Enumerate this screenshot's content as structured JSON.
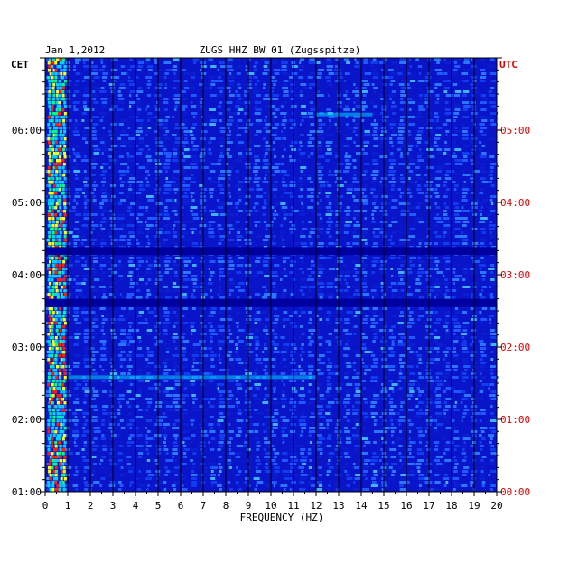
{
  "chart_data": {
    "type": "heatmap",
    "date": "Jan 1,2012",
    "title": "ZUGS HHZ BW 01 (Zugsspitze)",
    "left_timezone": "CET",
    "right_timezone": "UTC",
    "xlabel": "FREQUENCY (HZ)",
    "x_range": [
      0,
      20
    ],
    "x_ticks": [
      "0",
      "1",
      "2",
      "3",
      "4",
      "5",
      "6",
      "7",
      "8",
      "9",
      "10",
      "11",
      "12",
      "13",
      "14",
      "15",
      "16",
      "17",
      "18",
      "19",
      "20"
    ],
    "y_ticks_left": [
      "06:00",
      "05:00",
      "04:00",
      "03:00",
      "02:00",
      "01:00"
    ],
    "y_ticks_right": [
      "05:00",
      "04:00",
      "03:00",
      "02:00",
      "01:00",
      "00:00"
    ],
    "grid": true,
    "colors": {
      "background": "#0a14c8",
      "low": "#0000a0",
      "mid": "#1e5aff",
      "high": "#00d2ff",
      "peak": "#ffff00",
      "hot": "#ff2000",
      "grid": "#000000",
      "utc_label": "#e00000"
    },
    "features": [
      {
        "label": "data gap",
        "cet_time": "03:37",
        "freq_range": [
          0,
          20
        ]
      },
      {
        "label": "data gap",
        "cet_time": "04:20",
        "freq_range": [
          0,
          20
        ]
      },
      {
        "label": "band",
        "cet_time": "06:13",
        "freq_range": [
          12,
          14.5
        ]
      },
      {
        "label": "band",
        "cet_time": "02:35",
        "freq_range": [
          1,
          12
        ]
      }
    ]
  }
}
